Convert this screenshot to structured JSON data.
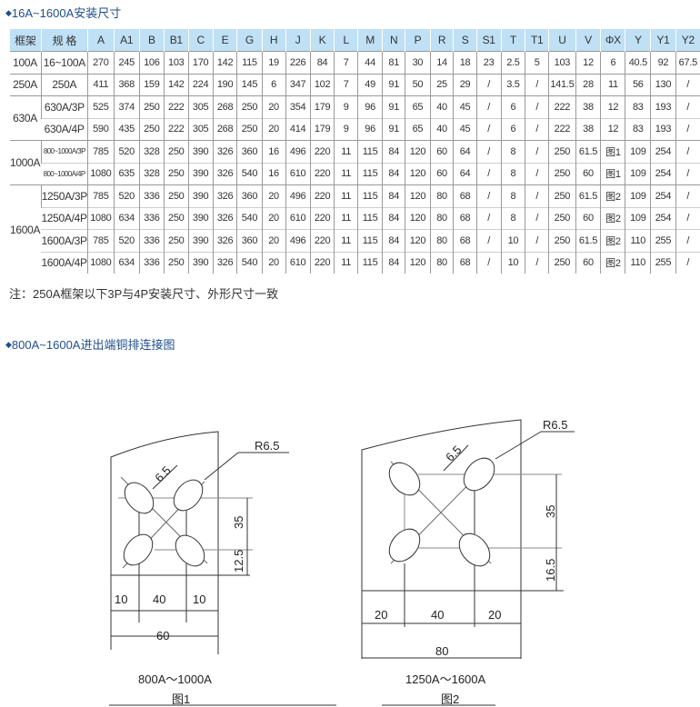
{
  "section1": {
    "title": "16A~1600A安装尺寸"
  },
  "table": {
    "headers": [
      "框架",
      "规 格",
      "A",
      "A1",
      "B",
      "B1",
      "C",
      "E",
      "G",
      "H",
      "J",
      "K",
      "L",
      "M",
      "N",
      "P",
      "R",
      "S",
      "S1",
      "T",
      "T1",
      "U",
      "V",
      "ΦX",
      "Y",
      "Y1",
      "Y2"
    ],
    "rows": [
      {
        "frame": "100A",
        "span": 1,
        "cells": [
          "16~100A",
          "270",
          "245",
          "106",
          "103",
          "170",
          "142",
          "115",
          "19",
          "226",
          "84",
          "7",
          "44",
          "81",
          "30",
          "14",
          "18",
          "23",
          "2.5",
          "5",
          "103",
          "12",
          "6",
          "40.5",
          "92",
          "67.5"
        ]
      },
      {
        "frame": "250A",
        "span": 1,
        "cells": [
          "250A",
          "411",
          "368",
          "159",
          "142",
          "224",
          "190",
          "145",
          "6",
          "347",
          "102",
          "7",
          "49",
          "91",
          "50",
          "25",
          "29",
          "/",
          "3.5",
          "/",
          "141.5",
          "28",
          "11",
          "56",
          "130",
          "/"
        ]
      },
      {
        "frame": "630A",
        "span": 2,
        "cells": [
          "630A/3P",
          "525",
          "374",
          "250",
          "222",
          "305",
          "268",
          "250",
          "20",
          "354",
          "179",
          "9",
          "96",
          "91",
          "65",
          "40",
          "45",
          "/",
          "6",
          "/",
          "222",
          "38",
          "12",
          "83",
          "193",
          "/"
        ]
      },
      {
        "frame": null,
        "cells": [
          "630A/4P",
          "590",
          "435",
          "250",
          "222",
          "305",
          "268",
          "250",
          "20",
          "414",
          "179",
          "9",
          "96",
          "91",
          "65",
          "40",
          "45",
          "/",
          "6",
          "/",
          "222",
          "38",
          "12",
          "83",
          "193",
          "/"
        ]
      },
      {
        "frame": "1000A",
        "span": 2,
        "cells": [
          "800~1000A/3P",
          "785",
          "520",
          "328",
          "250",
          "390",
          "326",
          "360",
          "16",
          "496",
          "220",
          "11",
          "115",
          "84",
          "120",
          "60",
          "64",
          "/",
          "8",
          "/",
          "250",
          "61.5",
          "图1",
          "109",
          "254",
          "/"
        ]
      },
      {
        "frame": null,
        "cells": [
          "800~1000A/4P",
          "1080",
          "635",
          "328",
          "250",
          "390",
          "326",
          "540",
          "16",
          "610",
          "220",
          "11",
          "115",
          "84",
          "120",
          "60",
          "64",
          "/",
          "8",
          "/",
          "250",
          "60",
          "图1",
          "109",
          "254",
          "/"
        ]
      },
      {
        "frame": "1600A",
        "span": 4,
        "cells": [
          "1250A/3P",
          "785",
          "520",
          "336",
          "250",
          "390",
          "326",
          "360",
          "20",
          "496",
          "220",
          "11",
          "115",
          "84",
          "120",
          "80",
          "68",
          "/",
          "8",
          "/",
          "250",
          "61.5",
          "图2",
          "109",
          "254",
          "/"
        ]
      },
      {
        "frame": null,
        "cells": [
          "1250A/4P",
          "1080",
          "634",
          "336",
          "250",
          "390",
          "326",
          "540",
          "20",
          "610",
          "220",
          "11",
          "115",
          "84",
          "120",
          "80",
          "68",
          "/",
          "8",
          "/",
          "250",
          "60",
          "图2",
          "109",
          "254",
          "/"
        ]
      },
      {
        "frame": null,
        "cells": [
          "1600A/3P",
          "785",
          "520",
          "336",
          "250",
          "390",
          "326",
          "360",
          "20",
          "496",
          "220",
          "11",
          "115",
          "84",
          "120",
          "80",
          "68",
          "/",
          "10",
          "/",
          "250",
          "61.5",
          "图2",
          "110",
          "255",
          "/"
        ]
      },
      {
        "frame": null,
        "cells": [
          "1600A/4P",
          "1080",
          "634",
          "336",
          "250",
          "390",
          "326",
          "540",
          "20",
          "610",
          "220",
          "11",
          "115",
          "84",
          "120",
          "80",
          "68",
          "/",
          "10",
          "/",
          "250",
          "60",
          "图2",
          "110",
          "255",
          "/"
        ]
      }
    ]
  },
  "note": "注：250A框架以下3P与4P安装尺寸、外形尺寸一致",
  "section2": {
    "title": "800A~1600A进出端铜排连接图"
  },
  "fig1": {
    "r": "R6.5",
    "slot": "6.5",
    "v1": "35",
    "v2": "12.5",
    "h1": "10",
    "h2": "40",
    "h3": "10",
    "total": "60",
    "range": "800A～1000A",
    "caption": "图1"
  },
  "fig2": {
    "r": "R6.5",
    "slot": "6.5",
    "v1": "35",
    "v2": "16.5",
    "h1": "20",
    "h2": "40",
    "h3": "20",
    "total": "80",
    "range": "1250A～1600A",
    "caption": "图2"
  },
  "colors": {
    "header_bg": "#bfe0f5",
    "title": "#1e4e8c"
  }
}
